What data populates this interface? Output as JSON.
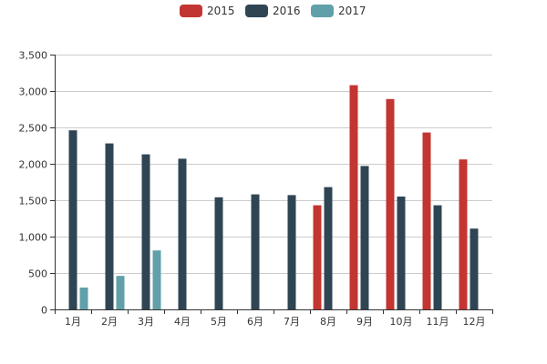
{
  "chart_data": {
    "type": "bar",
    "categories": [
      "1月",
      "2月",
      "3月",
      "4月",
      "5月",
      "6月",
      "7月",
      "8月",
      "9月",
      "10月",
      "11月",
      "12月"
    ],
    "series": [
      {
        "name": "2015",
        "color": "#c23531",
        "values": [
          null,
          null,
          null,
          null,
          null,
          null,
          null,
          1430,
          3080,
          2890,
          2430,
          2060
        ]
      },
      {
        "name": "2016",
        "color": "#2f4554",
        "values": [
          2460,
          2280,
          2130,
          2070,
          1540,
          1580,
          1570,
          1680,
          1970,
          1550,
          1430,
          1110
        ]
      },
      {
        "name": "2017",
        "color": "#61a0a8",
        "values": [
          300,
          460,
          810,
          null,
          null,
          null,
          null,
          null,
          null,
          null,
          null,
          null
        ]
      }
    ],
    "yticks": [
      "0",
      "500",
      "1,000",
      "1,500",
      "2,000",
      "2,500",
      "3,000",
      "3,500"
    ],
    "ylim": [
      0,
      3500
    ],
    "grid": "horizontal",
    "legend_position": "top-center"
  }
}
